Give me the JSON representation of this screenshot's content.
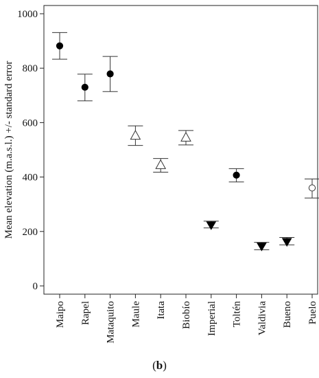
{
  "chart_data": {
    "type": "scatter",
    "ylabel": "Mean elevation (m.a.s.l.) +/- standard error",
    "ylim": [
      0,
      1000
    ],
    "yticks": [
      0,
      200,
      400,
      600,
      800,
      1000
    ],
    "grid": false,
    "categories": [
      "Maipo",
      "Rapel",
      "Mataquito",
      "Maule",
      "Itata",
      "Biobío",
      "Imperial",
      "Toltén",
      "Valdivia",
      "Bueno",
      "Puelo"
    ],
    "points": [
      {
        "category": "Maipo",
        "mean": 882,
        "lower": 833,
        "upper": 931,
        "marker": "filled-circle"
      },
      {
        "category": "Rapel",
        "mean": 730,
        "lower": 680,
        "upper": 778,
        "marker": "filled-circle"
      },
      {
        "category": "Mataquito",
        "mean": 779,
        "lower": 714,
        "upper": 843,
        "marker": "filled-circle"
      },
      {
        "category": "Maule",
        "mean": 553,
        "lower": 516,
        "upper": 588,
        "marker": "open-triangle"
      },
      {
        "category": "Itata",
        "mean": 445,
        "lower": 418,
        "upper": 468,
        "marker": "open-triangle"
      },
      {
        "category": "Biobío",
        "mean": 546,
        "lower": 518,
        "upper": 571,
        "marker": "open-triangle"
      },
      {
        "category": "Imperial",
        "mean": 224,
        "lower": 213,
        "upper": 238,
        "marker": "filled-triangle-down"
      },
      {
        "category": "Toltén",
        "mean": 407,
        "lower": 382,
        "upper": 431,
        "marker": "filled-circle"
      },
      {
        "category": "Valdivia",
        "mean": 146,
        "lower": 133,
        "upper": 160,
        "marker": "filled-triangle-down"
      },
      {
        "category": "Bueno",
        "mean": 163,
        "lower": 151,
        "upper": 178,
        "marker": "filled-triangle-down"
      },
      {
        "category": "Puelo",
        "mean": 360,
        "lower": 323,
        "upper": 393,
        "marker": "open-circle"
      }
    ]
  },
  "caption": {
    "open": "(",
    "letter": "b",
    "close": ")"
  }
}
